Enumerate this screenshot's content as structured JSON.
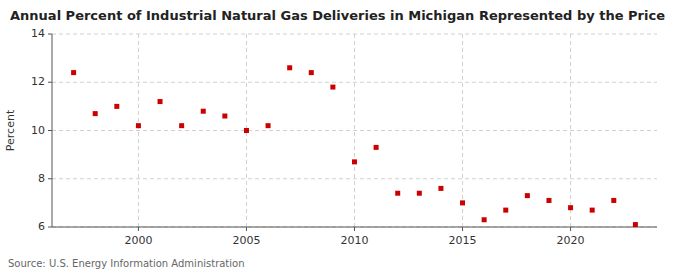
{
  "chart_data": {
    "type": "scatter",
    "title": "Annual Percent of Industrial Natural Gas Deliveries in Michigan Represented by the Price",
    "ylabel": "Percent",
    "source": "Source: U.S. Energy Information Administration",
    "x": [
      1997,
      1998,
      1999,
      2000,
      2001,
      2002,
      2003,
      2004,
      2005,
      2006,
      2007,
      2008,
      2009,
      2010,
      2011,
      2012,
      2013,
      2014,
      2015,
      2016,
      2017,
      2018,
      2019,
      2020,
      2021,
      2022,
      2023
    ],
    "values": [
      12.4,
      10.7,
      11.0,
      10.2,
      11.2,
      10.2,
      10.8,
      10.6,
      10.0,
      10.2,
      12.6,
      12.4,
      11.8,
      8.7,
      9.3,
      7.4,
      7.4,
      7.6,
      7.0,
      6.3,
      6.7,
      7.3,
      7.1,
      6.8,
      6.7,
      7.1,
      6.1
    ],
    "color": "#cc0000",
    "marker": "square",
    "xlim": [
      1996,
      2024
    ],
    "xticks": [
      2000,
      2005,
      2010,
      2015,
      2020
    ],
    "ylim": [
      6,
      14
    ],
    "yticks": [
      6,
      8,
      10,
      12,
      14
    ],
    "grid": true
  }
}
